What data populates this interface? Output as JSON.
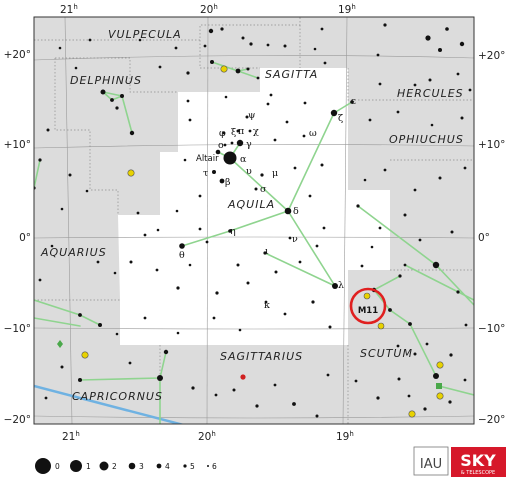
{
  "map": {
    "constellation_focus": "AQUILA",
    "constellation_names": [
      {
        "id": "vulpecula",
        "label": "VULPECULA"
      },
      {
        "id": "sagitta",
        "label": "SAGITTA"
      },
      {
        "id": "delphinus",
        "label": "DELPHINUS"
      },
      {
        "id": "hercules",
        "label": "HERCULES"
      },
      {
        "id": "ophiuchus",
        "label": "OPHIUCHUS"
      },
      {
        "id": "aquila",
        "label": "AQUILA"
      },
      {
        "id": "aquarius",
        "label": "AQUARIUS"
      },
      {
        "id": "scutum",
        "label": "SCUTUM"
      },
      {
        "id": "sagittarius",
        "label": "SAGITTARIUS"
      },
      {
        "id": "capricornus",
        "label": "CAPRICORNUS"
      }
    ],
    "ra_ticks_top": [
      {
        "base": "21",
        "sup": "h"
      },
      {
        "base": "20",
        "sup": "h"
      },
      {
        "base": "19",
        "sup": "h"
      }
    ],
    "ra_ticks_bottom": [
      {
        "base": "21",
        "sup": "h"
      },
      {
        "base": "20",
        "sup": "h"
      },
      {
        "base": "19",
        "sup": "h"
      }
    ],
    "dec_ticks_left": [
      "+20°",
      "+10°",
      "0°",
      "−10°",
      "−20°"
    ],
    "dec_ticks_right": [
      "+20°",
      "+10°",
      "0°",
      "−10°",
      "−20°"
    ],
    "star_labels": [
      {
        "id": "altair",
        "text": "Altair"
      },
      {
        "id": "alpha",
        "text": "α"
      },
      {
        "id": "beta",
        "text": "β"
      },
      {
        "id": "gamma",
        "text": "γ"
      },
      {
        "id": "delta",
        "text": "δ"
      },
      {
        "id": "epsilon",
        "text": "ε"
      },
      {
        "id": "zeta",
        "text": "ζ"
      },
      {
        "id": "eta",
        "text": "η"
      },
      {
        "id": "theta",
        "text": "θ"
      },
      {
        "id": "iota",
        "text": "ι"
      },
      {
        "id": "kappa",
        "text": "κ"
      },
      {
        "id": "lambda",
        "text": "λ"
      },
      {
        "id": "mu",
        "text": "μ"
      },
      {
        "id": "nu",
        "text": "ν"
      },
      {
        "id": "xi",
        "text": "ξ"
      },
      {
        "id": "omicron",
        "text": "ο"
      },
      {
        "id": "pi",
        "text": "π"
      },
      {
        "id": "sigma",
        "text": "σ"
      },
      {
        "id": "tau",
        "text": "τ"
      },
      {
        "id": "upsilon",
        "text": "υ"
      },
      {
        "id": "phi",
        "text": "φ"
      },
      {
        "id": "chi",
        "text": "χ"
      },
      {
        "id": "psi",
        "text": "ψ"
      },
      {
        "id": "omega",
        "text": "ω"
      }
    ],
    "deep_sky_label": "M11",
    "legend_magnitudes": [
      "0",
      "1",
      "2",
      "3",
      "4",
      "5",
      "6"
    ],
    "logo_iau": "IAU",
    "logo_sky": "SKY",
    "logo_sky_sub": "& TELESCOPE",
    "colors": {
      "background_constellations": "#dcdcdc",
      "focus_constellation": "#ffffff",
      "constellation_lines": "#8fd48f",
      "ecliptic": "#6fb2e2",
      "highlight_circle": "#e02020",
      "galaxy_symbol": "#e8d200",
      "logo_red": "#d6182a"
    }
  }
}
